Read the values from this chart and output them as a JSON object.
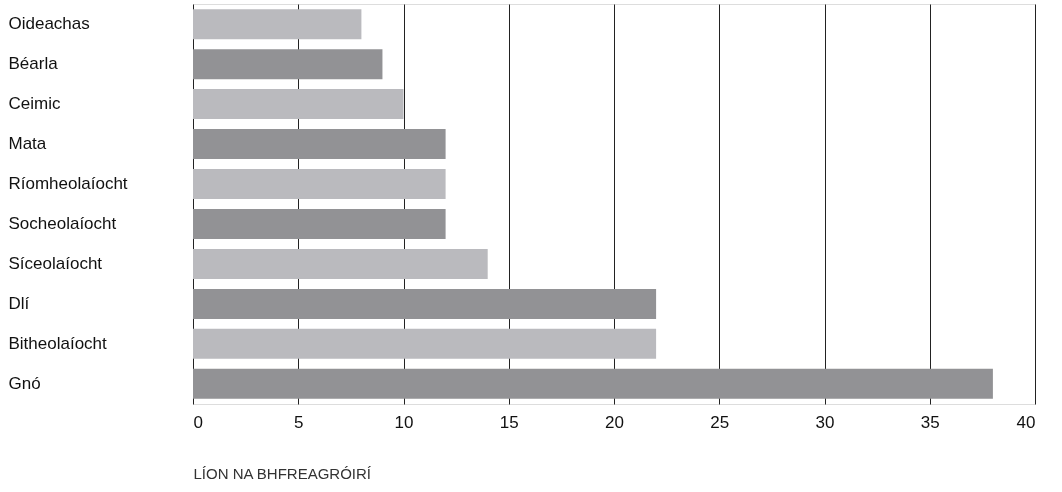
{
  "chart_data": {
    "type": "bar",
    "orientation": "horizontal",
    "xlabel": "LÍON NA BHFREAGRÓIRÍ",
    "categories": [
      "Oideachas",
      "Béarla",
      "Ceimic",
      "Mata",
      "Ríomheolaíocht",
      "Socheolaíocht",
      "Síceolaíocht",
      "Dlí",
      "Bitheolaíocht",
      "Gnó"
    ],
    "values": [
      8,
      9,
      10,
      12,
      12,
      12,
      14,
      22,
      22,
      38
    ],
    "colors": [
      "#bababe",
      "#929295",
      "#bababe",
      "#929295",
      "#bababe",
      "#929295",
      "#bababe",
      "#929295",
      "#bababe",
      "#929295"
    ],
    "xlim": [
      0,
      40
    ],
    "xticks": [
      0,
      5,
      10,
      15,
      20,
      25,
      30,
      35,
      40
    ],
    "grid": "x"
  }
}
